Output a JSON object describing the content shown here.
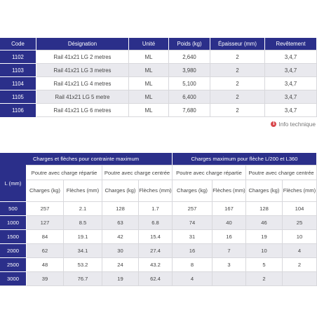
{
  "product_table": {
    "headers": {
      "code": "Code",
      "designation": "Désignation",
      "unite": "Unité",
      "poids": "Poids (kg)",
      "epaisseur": "Épaisseur (mm)",
      "revetement": "Revêtement"
    },
    "rows": [
      {
        "code": "1102",
        "designation": "Rail 41x21 LG 2 metres",
        "unite": "ML",
        "poids": "2,640",
        "epaisseur": "2",
        "revetement": "3,4,7"
      },
      {
        "code": "1103",
        "designation": "Rail 41x21 LG 3 metres",
        "unite": "ML",
        "poids": "3,980",
        "epaisseur": "2",
        "revetement": "3,4,7"
      },
      {
        "code": "1104",
        "designation": "Rail 41x21 LG 4 metres",
        "unite": "ML",
        "poids": "5,100",
        "epaisseur": "2",
        "revetement": "3,4,7"
      },
      {
        "code": "1105",
        "designation": "Rail 41x21 LG 5 metre",
        "unite": "ML",
        "poids": "6,400",
        "epaisseur": "2",
        "revetement": "3,4,7"
      },
      {
        "code": "1106",
        "designation": "Rail 41x21 LG 6 metres",
        "unite": "ML",
        "poids": "7,680",
        "epaisseur": "2",
        "revetement": "3,4,7"
      }
    ]
  },
  "info_link": {
    "icon": "info-icon",
    "icon_glyph": "i",
    "label": "Info technique"
  },
  "load_table": {
    "group_headers": {
      "left": "Charges et flèches pour contrainte maximum",
      "right": "Charges maximum pour flèche L/200 et L360"
    },
    "length_header": "L (mm)",
    "sub_headers": [
      "Poutre avec charge répartie",
      "Poutre avec charge centrée",
      "Poutre avec charge répartie",
      "Poutre avec charge centrée"
    ],
    "column_headers": [
      "Charges (kg)",
      "Flèches (mm)",
      "Charges (kg)",
      "Flèches (mm)",
      "Charges (kg)",
      "Flèches (mm)",
      "Charges (kg)",
      "Flèches (mm)"
    ],
    "rows": [
      {
        "l": "500",
        "values": [
          "257",
          "2.1",
          "128",
          "1.7",
          "257",
          "167",
          "128",
          "104"
        ]
      },
      {
        "l": "1000",
        "values": [
          "127",
          "8.5",
          "63",
          "6.8",
          "74",
          "40",
          "46",
          "25"
        ]
      },
      {
        "l": "1500",
        "values": [
          "84",
          "19.1",
          "42",
          "15.4",
          "31",
          "16",
          "19",
          "10"
        ]
      },
      {
        "l": "2000",
        "values": [
          "62",
          "34.1",
          "30",
          "27.4",
          "16",
          "7",
          "10",
          "4"
        ]
      },
      {
        "l": "2500",
        "values": [
          "48",
          "53.2",
          "24",
          "43.2",
          "8",
          "3",
          "5",
          "2"
        ]
      },
      {
        "l": "3000",
        "values": [
          "39",
          "76.7",
          "19",
          "62.4",
          "4",
          "",
          "2",
          ""
        ]
      }
    ]
  },
  "colors": {
    "header_navy": "#2b2f8a",
    "row_alt": "#e9e9ee",
    "info_red": "#d8484d"
  }
}
